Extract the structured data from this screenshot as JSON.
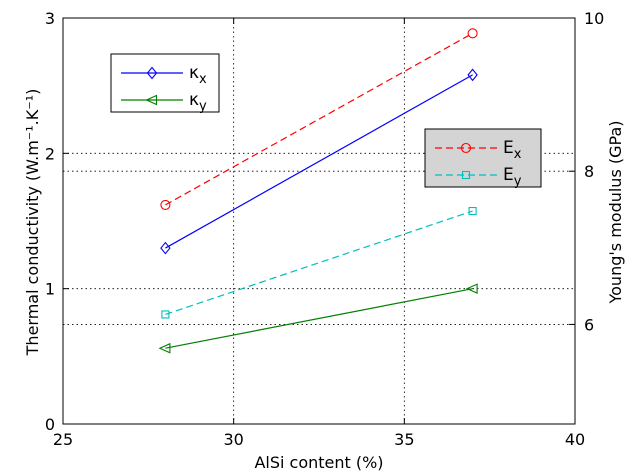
{
  "chart_data": {
    "type": "line",
    "xlabel": "AlSi content (%)",
    "ylabel": "Thermal conductivity (W.m⁻¹.K⁻¹)",
    "ylabel_right": "Young's modulus (GPa)",
    "xlim": [
      25,
      40
    ],
    "ylim": [
      0,
      3
    ],
    "ylim_right": [
      4.7,
      10
    ],
    "x_ticks": [
      "25",
      "30",
      "35",
      "40"
    ],
    "y_ticks": [
      "0",
      "1",
      "2",
      "3"
    ],
    "y_ticks_right": [
      "6",
      "8",
      "10"
    ],
    "grid": true,
    "series_left": [
      {
        "name": "κ",
        "subscript": "x",
        "axis": "left",
        "color": "#0000ff",
        "linestyle": "solid",
        "marker": "diamond",
        "x": [
          28,
          37
        ],
        "y": [
          1.3,
          2.58
        ]
      },
      {
        "name": "κ",
        "subscript": "y",
        "axis": "left",
        "color": "#008000",
        "linestyle": "solid",
        "marker": "triangle-left",
        "x": [
          28,
          37
        ],
        "y": [
          0.56,
          1.0
        ]
      }
    ],
    "series_right": [
      {
        "name": "E",
        "subscript": "x",
        "axis": "right",
        "color": "#ff0000",
        "linestyle": "dashed",
        "marker": "circle",
        "x": [
          28,
          37
        ],
        "y": [
          7.56,
          9.8
        ]
      },
      {
        "name": "E",
        "subscript": "y",
        "axis": "right",
        "color": "#00bfbf",
        "linestyle": "dashed",
        "marker": "square",
        "x": [
          28,
          37
        ],
        "y": [
          6.13,
          7.48
        ]
      }
    ],
    "legend_left_placement": "upper-left",
    "legend_right_placement": "right-middle"
  }
}
